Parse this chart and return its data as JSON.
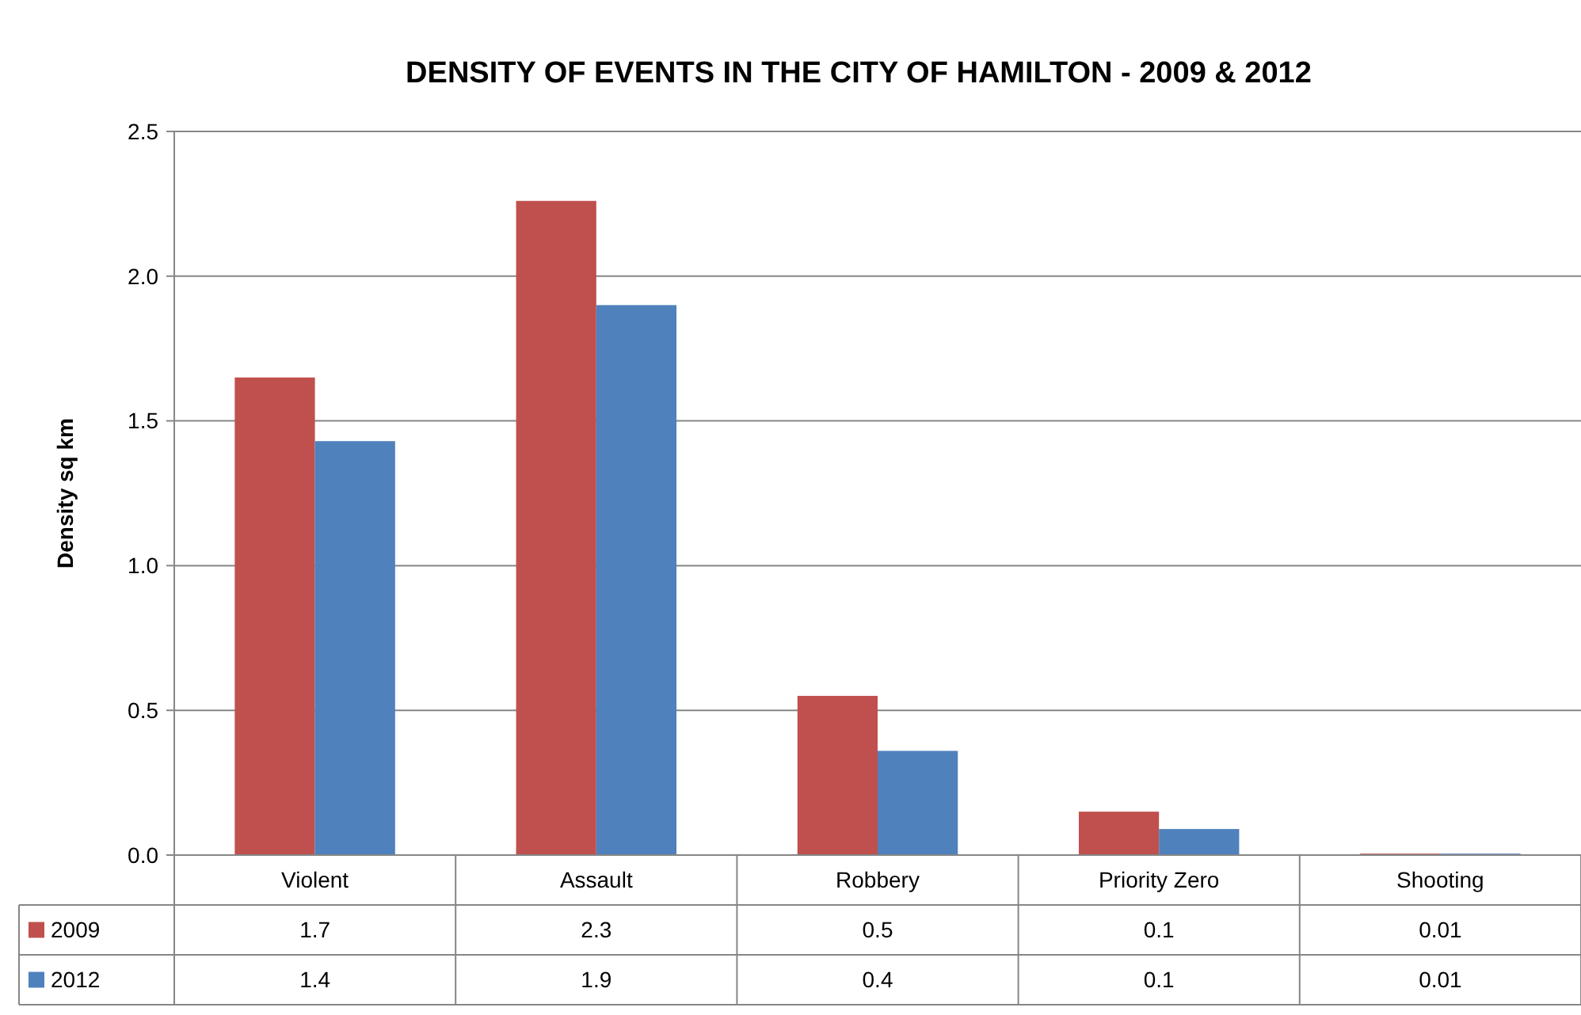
{
  "chart_data": {
    "type": "bar",
    "title": "DENSITY OF EVENTS IN THE CITY OF HAMILTON - 2009 & 2012",
    "ylabel": "Density sq km",
    "categories": [
      "Violent",
      "Assault",
      "Robbery",
      "Priority Zero",
      "Shooting"
    ],
    "series": [
      {
        "name": "2009",
        "color": "#c0504d",
        "values": [
          1.65,
          2.26,
          0.55,
          0.15,
          0.005
        ],
        "value_labels": [
          "1.7",
          "2.3",
          "0.5",
          "0.1",
          "0.01"
        ]
      },
      {
        "name": "2012",
        "color": "#4f81bd",
        "values": [
          1.43,
          1.9,
          0.36,
          0.09,
          0.005
        ],
        "value_labels": [
          "1.4",
          "1.9",
          "0.4",
          "0.1",
          "0.01"
        ]
      }
    ],
    "ylim": [
      0,
      2.5
    ],
    "yticks": [
      {
        "value": 0,
        "label": "0.0"
      },
      {
        "value": 0.5,
        "label": "0.5"
      },
      {
        "value": 1,
        "label": "1.0"
      },
      {
        "value": 1.5,
        "label": "1.5"
      },
      {
        "value": 2,
        "label": "2.0"
      },
      {
        "value": 2.5,
        "label": "2.5"
      }
    ],
    "grid": "y",
    "legend": "bottom"
  }
}
